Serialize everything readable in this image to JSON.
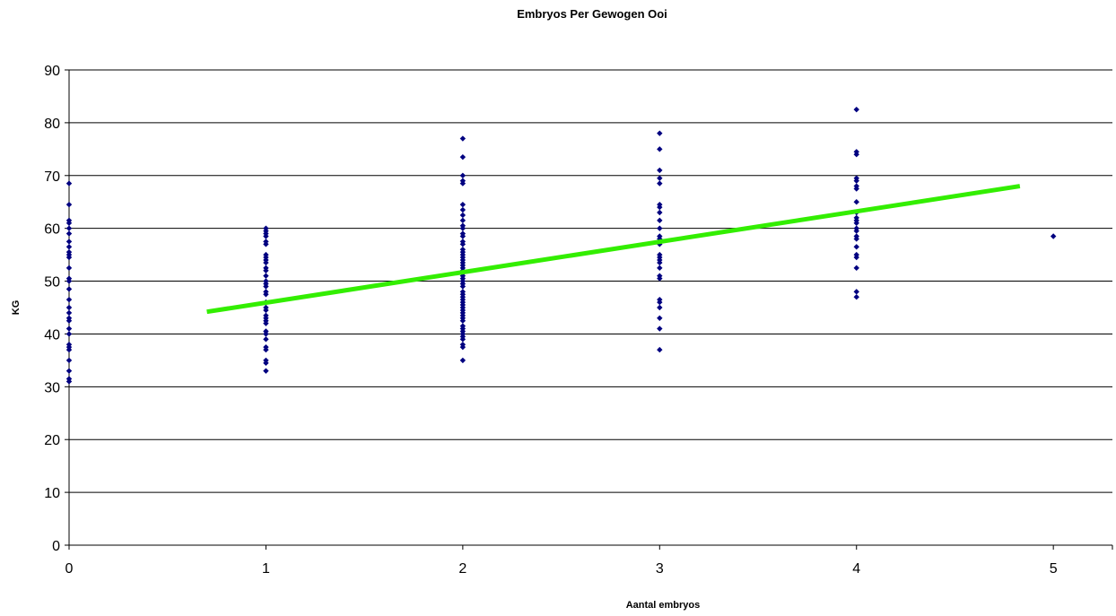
{
  "chart_data": {
    "type": "scatter",
    "title": "Embryos Per Gewogen Ooi",
    "xlabel": "Aantal embryos",
    "ylabel": "KG",
    "xlim": [
      0,
      5.3
    ],
    "ylim": [
      0,
      90
    ],
    "x_ticks": [
      0,
      1,
      2,
      3,
      4,
      5
    ],
    "y_ticks": [
      0,
      10,
      20,
      30,
      40,
      50,
      60,
      70,
      80,
      90
    ],
    "grid": "horizontal",
    "legend": "none",
    "colors": {
      "points": "#000080",
      "trendline": "#33ee00",
      "grid": "#000000"
    },
    "series": [
      {
        "points": [
          [
            0,
            68.5
          ],
          [
            0,
            64.5
          ],
          [
            0,
            61.5
          ],
          [
            0,
            61
          ],
          [
            0,
            60
          ],
          [
            0,
            59
          ],
          [
            0,
            57.5
          ],
          [
            0,
            56.5
          ],
          [
            0,
            55.5
          ],
          [
            0,
            55
          ],
          [
            0,
            54.5
          ],
          [
            0,
            52.5
          ],
          [
            0,
            50.5
          ],
          [
            0,
            50
          ],
          [
            0,
            48.5
          ],
          [
            0,
            46.5
          ],
          [
            0,
            45
          ],
          [
            0,
            44
          ],
          [
            0,
            43
          ],
          [
            0,
            42.5
          ],
          [
            0,
            41
          ],
          [
            0,
            40
          ],
          [
            0,
            38
          ],
          [
            0,
            37.5
          ],
          [
            0,
            37
          ],
          [
            0,
            35
          ],
          [
            0,
            33
          ],
          [
            0,
            31.5
          ],
          [
            0,
            31
          ],
          [
            1,
            60
          ],
          [
            1,
            59.5
          ],
          [
            1,
            59
          ],
          [
            1,
            58.5
          ],
          [
            1,
            57.5
          ],
          [
            1,
            57
          ],
          [
            1,
            55
          ],
          [
            1,
            54.5
          ],
          [
            1,
            54
          ],
          [
            1,
            53.5
          ],
          [
            1,
            52.5
          ],
          [
            1,
            52
          ],
          [
            1,
            51
          ],
          [
            1,
            50
          ],
          [
            1,
            49.5
          ],
          [
            1,
            49
          ],
          [
            1,
            48
          ],
          [
            1,
            47.5
          ],
          [
            1,
            46
          ],
          [
            1,
            45
          ],
          [
            1,
            44.5
          ],
          [
            1,
            43.5
          ],
          [
            1,
            43
          ],
          [
            1,
            42.5
          ],
          [
            1,
            42
          ],
          [
            1,
            40.5
          ],
          [
            1,
            40
          ],
          [
            1,
            39
          ],
          [
            1,
            37.5
          ],
          [
            1,
            37
          ],
          [
            1,
            35
          ],
          [
            1,
            34.5
          ],
          [
            1,
            33
          ],
          [
            2,
            77
          ],
          [
            2,
            73.5
          ],
          [
            2,
            70
          ],
          [
            2,
            69
          ],
          [
            2,
            68.5
          ],
          [
            2,
            64.5
          ],
          [
            2,
            63.5
          ],
          [
            2,
            62.5
          ],
          [
            2,
            61.5
          ],
          [
            2,
            60.5
          ],
          [
            2,
            60
          ],
          [
            2,
            59
          ],
          [
            2,
            58.5
          ],
          [
            2,
            57.5
          ],
          [
            2,
            57
          ],
          [
            2,
            56
          ],
          [
            2,
            55.5
          ],
          [
            2,
            55
          ],
          [
            2,
            54.5
          ],
          [
            2,
            54
          ],
          [
            2,
            53.5
          ],
          [
            2,
            53
          ],
          [
            2,
            52.5
          ],
          [
            2,
            52
          ],
          [
            2,
            51.5
          ],
          [
            2,
            51
          ],
          [
            2,
            50.5
          ],
          [
            2,
            50
          ],
          [
            2,
            49.5
          ],
          [
            2,
            49
          ],
          [
            2,
            48
          ],
          [
            2,
            47.5
          ],
          [
            2,
            47
          ],
          [
            2,
            46.5
          ],
          [
            2,
            46
          ],
          [
            2,
            45.5
          ],
          [
            2,
            45
          ],
          [
            2,
            44.5
          ],
          [
            2,
            44
          ],
          [
            2,
            43.5
          ],
          [
            2,
            43
          ],
          [
            2,
            42.5
          ],
          [
            2,
            41.5
          ],
          [
            2,
            41
          ],
          [
            2,
            40.5
          ],
          [
            2,
            40
          ],
          [
            2,
            39.5
          ],
          [
            2,
            39
          ],
          [
            2,
            38
          ],
          [
            2,
            37.5
          ],
          [
            2,
            35
          ],
          [
            3,
            78
          ],
          [
            3,
            75
          ],
          [
            3,
            71
          ],
          [
            3,
            69.5
          ],
          [
            3,
            68.5
          ],
          [
            3,
            64.5
          ],
          [
            3,
            64
          ],
          [
            3,
            63
          ],
          [
            3,
            61.5
          ],
          [
            3,
            60
          ],
          [
            3,
            58.5
          ],
          [
            3,
            58
          ],
          [
            3,
            57
          ],
          [
            3,
            55
          ],
          [
            3,
            54.5
          ],
          [
            3,
            54
          ],
          [
            3,
            53.5
          ],
          [
            3,
            52.5
          ],
          [
            3,
            51
          ],
          [
            3,
            50.5
          ],
          [
            3,
            46.5
          ],
          [
            3,
            46
          ],
          [
            3,
            45
          ],
          [
            3,
            43
          ],
          [
            3,
            41
          ],
          [
            3,
            37
          ],
          [
            4,
            82.5
          ],
          [
            4,
            74.5
          ],
          [
            4,
            74
          ],
          [
            4,
            69.5
          ],
          [
            4,
            69
          ],
          [
            4,
            68
          ],
          [
            4,
            67.5
          ],
          [
            4,
            65
          ],
          [
            4,
            63
          ],
          [
            4,
            62
          ],
          [
            4,
            61.5
          ],
          [
            4,
            61
          ],
          [
            4,
            60
          ],
          [
            4,
            59.5
          ],
          [
            4,
            58.5
          ],
          [
            4,
            58
          ],
          [
            4,
            56.5
          ],
          [
            4,
            55
          ],
          [
            4,
            54.5
          ],
          [
            4,
            52.5
          ],
          [
            4,
            48
          ],
          [
            4,
            47
          ],
          [
            5,
            58.5
          ]
        ]
      }
    ],
    "trendline": {
      "x": [
        0.7,
        4.83
      ],
      "y": [
        44.2,
        68
      ]
    }
  }
}
